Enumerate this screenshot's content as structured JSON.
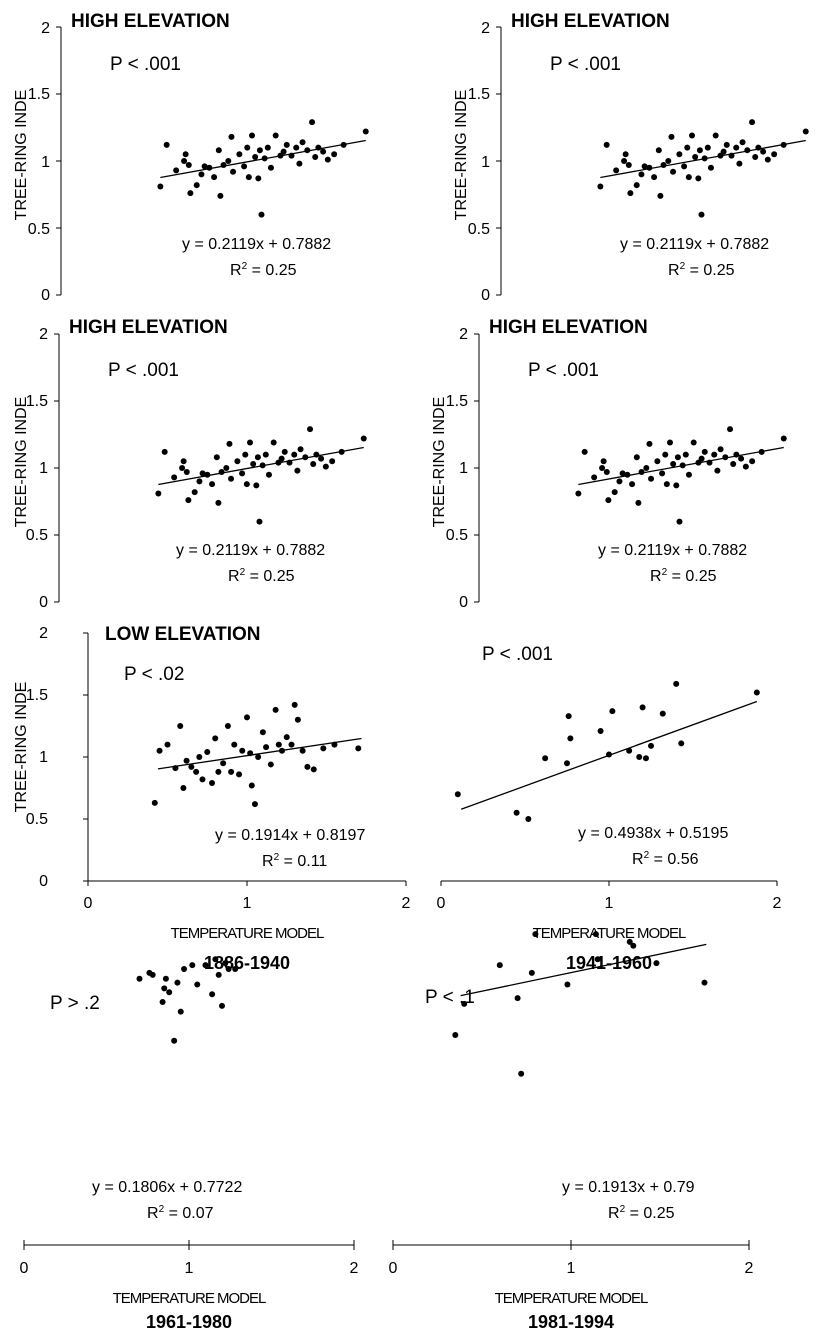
{
  "figure": {
    "y_axis_label": "TREE-RING INDE",
    "x_axis_label": "TEMPERATURE MODEL",
    "y_ticks": [
      "0",
      "0.5",
      "1",
      "1.5",
      "2"
    ],
    "x_ticks": [
      "0",
      "1",
      "2"
    ]
  },
  "chart_data": [
    {
      "type": "scatter",
      "panel": "row1-left",
      "title": "HIGH ELEVATION",
      "p_value": "P < .001",
      "equation": "y = 0.2119x + 0.7882",
      "r2_label": "R",
      "r2_sup": "2",
      "r2_value": " = 0.25",
      "ylim": [
        0,
        2
      ],
      "xlim": [
        0,
        2
      ],
      "trend": {
        "slope": 0.2119,
        "intercept": 0.7882,
        "x_range": [
          0.42,
          1.72
        ]
      },
      "points": [
        [
          0.42,
          0.81
        ],
        [
          0.46,
          1.12
        ],
        [
          0.52,
          0.93
        ],
        [
          0.57,
          1.0
        ],
        [
          0.58,
          1.05
        ],
        [
          0.6,
          0.97
        ],
        [
          0.61,
          0.76
        ],
        [
          0.65,
          0.82
        ],
        [
          0.68,
          0.9
        ],
        [
          0.7,
          0.96
        ],
        [
          0.73,
          0.95
        ],
        [
          0.76,
          0.88
        ],
        [
          0.79,
          1.08
        ],
        [
          0.8,
          0.74
        ],
        [
          0.82,
          0.97
        ],
        [
          0.85,
          1.0
        ],
        [
          0.87,
          1.18
        ],
        [
          0.88,
          0.92
        ],
        [
          0.92,
          1.05
        ],
        [
          0.95,
          0.96
        ],
        [
          0.97,
          1.1
        ],
        [
          0.98,
          0.88
        ],
        [
          1.0,
          1.19
        ],
        [
          1.02,
          1.03
        ],
        [
          1.04,
          0.87
        ],
        [
          1.05,
          1.08
        ],
        [
          1.06,
          0.6
        ],
        [
          1.08,
          1.02
        ],
        [
          1.1,
          1.1
        ],
        [
          1.12,
          0.95
        ],
        [
          1.15,
          1.19
        ],
        [
          1.18,
          1.04
        ],
        [
          1.2,
          1.07
        ],
        [
          1.22,
          1.12
        ],
        [
          1.25,
          1.04
        ],
        [
          1.28,
          1.1
        ],
        [
          1.3,
          0.98
        ],
        [
          1.32,
          1.14
        ],
        [
          1.35,
          1.08
        ],
        [
          1.38,
          1.29
        ],
        [
          1.4,
          1.03
        ],
        [
          1.42,
          1.1
        ],
        [
          1.45,
          1.07
        ],
        [
          1.48,
          1.01
        ],
        [
          1.52,
          1.05
        ],
        [
          1.58,
          1.12
        ],
        [
          1.72,
          1.22
        ]
      ]
    },
    {
      "type": "scatter",
      "panel": "row1-right",
      "title": "HIGH ELEVATION",
      "p_value": "P < .001",
      "equation": "y = 0.2119x + 0.7882",
      "r2_label": "R",
      "r2_sup": "2",
      "r2_value": " = 0.25",
      "ylim": [
        0,
        2
      ],
      "xlim": [
        0,
        2
      ],
      "trend": {
        "slope": 0.2119,
        "intercept": 0.7882,
        "x_range": [
          0.42,
          1.72
        ]
      },
      "points": [
        [
          0.42,
          0.81
        ],
        [
          0.46,
          1.12
        ],
        [
          0.52,
          0.93
        ],
        [
          0.57,
          1.0
        ],
        [
          0.58,
          1.05
        ],
        [
          0.6,
          0.97
        ],
        [
          0.61,
          0.76
        ],
        [
          0.65,
          0.82
        ],
        [
          0.68,
          0.9
        ],
        [
          0.7,
          0.96
        ],
        [
          0.73,
          0.95
        ],
        [
          0.76,
          0.88
        ],
        [
          0.79,
          1.08
        ],
        [
          0.8,
          0.74
        ],
        [
          0.82,
          0.97
        ],
        [
          0.85,
          1.0
        ],
        [
          0.87,
          1.18
        ],
        [
          0.88,
          0.92
        ],
        [
          0.92,
          1.05
        ],
        [
          0.95,
          0.96
        ],
        [
          0.97,
          1.1
        ],
        [
          0.98,
          0.88
        ],
        [
          1.0,
          1.19
        ],
        [
          1.02,
          1.03
        ],
        [
          1.04,
          0.87
        ],
        [
          1.05,
          1.08
        ],
        [
          1.06,
          0.6
        ],
        [
          1.08,
          1.02
        ],
        [
          1.1,
          1.1
        ],
        [
          1.12,
          0.95
        ],
        [
          1.15,
          1.19
        ],
        [
          1.18,
          1.04
        ],
        [
          1.2,
          1.07
        ],
        [
          1.22,
          1.12
        ],
        [
          1.25,
          1.04
        ],
        [
          1.28,
          1.1
        ],
        [
          1.3,
          0.98
        ],
        [
          1.32,
          1.14
        ],
        [
          1.35,
          1.08
        ],
        [
          1.38,
          1.29
        ],
        [
          1.4,
          1.03
        ],
        [
          1.42,
          1.1
        ],
        [
          1.45,
          1.07
        ],
        [
          1.48,
          1.01
        ],
        [
          1.52,
          1.05
        ],
        [
          1.58,
          1.12
        ],
        [
          1.72,
          1.22
        ]
      ]
    },
    {
      "type": "scatter",
      "panel": "row2-left",
      "title": "HIGH ELEVATION",
      "p_value": "P < .001",
      "equation": "y = 0.2119x + 0.7882",
      "r2_label": "R",
      "r2_sup": "2",
      "r2_value": " = 0.25",
      "ylim": [
        0,
        2
      ],
      "xlim": [
        0,
        2
      ],
      "trend": {
        "slope": 0.2119,
        "intercept": 0.7882,
        "x_range": [
          0.42,
          1.72
        ]
      },
      "points": [
        [
          0.42,
          0.81
        ],
        [
          0.46,
          1.12
        ],
        [
          0.52,
          0.93
        ],
        [
          0.57,
          1.0
        ],
        [
          0.58,
          1.05
        ],
        [
          0.6,
          0.97
        ],
        [
          0.61,
          0.76
        ],
        [
          0.65,
          0.82
        ],
        [
          0.68,
          0.9
        ],
        [
          0.7,
          0.96
        ],
        [
          0.73,
          0.95
        ],
        [
          0.76,
          0.88
        ],
        [
          0.79,
          1.08
        ],
        [
          0.8,
          0.74
        ],
        [
          0.82,
          0.97
        ],
        [
          0.85,
          1.0
        ],
        [
          0.87,
          1.18
        ],
        [
          0.88,
          0.92
        ],
        [
          0.92,
          1.05
        ],
        [
          0.95,
          0.96
        ],
        [
          0.97,
          1.1
        ],
        [
          0.98,
          0.88
        ],
        [
          1.0,
          1.19
        ],
        [
          1.02,
          1.03
        ],
        [
          1.04,
          0.87
        ],
        [
          1.05,
          1.08
        ],
        [
          1.06,
          0.6
        ],
        [
          1.08,
          1.02
        ],
        [
          1.1,
          1.1
        ],
        [
          1.12,
          0.95
        ],
        [
          1.15,
          1.19
        ],
        [
          1.18,
          1.04
        ],
        [
          1.2,
          1.07
        ],
        [
          1.22,
          1.12
        ],
        [
          1.25,
          1.04
        ],
        [
          1.28,
          1.1
        ],
        [
          1.3,
          0.98
        ],
        [
          1.32,
          1.14
        ],
        [
          1.35,
          1.08
        ],
        [
          1.38,
          1.29
        ],
        [
          1.4,
          1.03
        ],
        [
          1.42,
          1.1
        ],
        [
          1.45,
          1.07
        ],
        [
          1.48,
          1.01
        ],
        [
          1.52,
          1.05
        ],
        [
          1.58,
          1.12
        ],
        [
          1.72,
          1.22
        ]
      ]
    },
    {
      "type": "scatter",
      "panel": "row2-right",
      "title": "HIGH ELEVATION",
      "p_value": "P < .001",
      "equation": "y = 0.2119x + 0.7882",
      "r2_label": "R",
      "r2_sup": "2",
      "r2_value": " = 0.25",
      "ylim": [
        0,
        2
      ],
      "xlim": [
        0,
        2
      ],
      "trend": {
        "slope": 0.2119,
        "intercept": 0.7882,
        "x_range": [
          0.42,
          1.72
        ]
      },
      "points": [
        [
          0.42,
          0.81
        ],
        [
          0.46,
          1.12
        ],
        [
          0.52,
          0.93
        ],
        [
          0.57,
          1.0
        ],
        [
          0.58,
          1.05
        ],
        [
          0.6,
          0.97
        ],
        [
          0.61,
          0.76
        ],
        [
          0.65,
          0.82
        ],
        [
          0.68,
          0.9
        ],
        [
          0.7,
          0.96
        ],
        [
          0.73,
          0.95
        ],
        [
          0.76,
          0.88
        ],
        [
          0.79,
          1.08
        ],
        [
          0.8,
          0.74
        ],
        [
          0.82,
          0.97
        ],
        [
          0.85,
          1.0
        ],
        [
          0.87,
          1.18
        ],
        [
          0.88,
          0.92
        ],
        [
          0.92,
          1.05
        ],
        [
          0.95,
          0.96
        ],
        [
          0.97,
          1.1
        ],
        [
          0.98,
          0.88
        ],
        [
          1.0,
          1.19
        ],
        [
          1.02,
          1.03
        ],
        [
          1.04,
          0.87
        ],
        [
          1.05,
          1.08
        ],
        [
          1.06,
          0.6
        ],
        [
          1.08,
          1.02
        ],
        [
          1.1,
          1.1
        ],
        [
          1.12,
          0.95
        ],
        [
          1.15,
          1.19
        ],
        [
          1.18,
          1.04
        ],
        [
          1.2,
          1.07
        ],
        [
          1.22,
          1.12
        ],
        [
          1.25,
          1.04
        ],
        [
          1.28,
          1.1
        ],
        [
          1.3,
          0.98
        ],
        [
          1.32,
          1.14
        ],
        [
          1.35,
          1.08
        ],
        [
          1.38,
          1.29
        ],
        [
          1.4,
          1.03
        ],
        [
          1.42,
          1.1
        ],
        [
          1.45,
          1.07
        ],
        [
          1.48,
          1.01
        ],
        [
          1.52,
          1.05
        ],
        [
          1.58,
          1.12
        ],
        [
          1.72,
          1.22
        ]
      ]
    },
    {
      "type": "scatter",
      "panel": "row3-left",
      "title": "LOW ELEVATION",
      "p_value": "P < .02",
      "equation": "y = 0.1914x + 0.8197",
      "r2_label": "R",
      "r2_sup": "2",
      "r2_value": " = 0.11",
      "period": "1886-1940",
      "ylim": [
        0,
        2
      ],
      "xlim": [
        0,
        2
      ],
      "trend": {
        "slope": 0.1914,
        "intercept": 0.8197,
        "x_range": [
          0.44,
          1.72
        ]
      },
      "points": [
        [
          0.42,
          0.63
        ],
        [
          0.45,
          1.05
        ],
        [
          0.5,
          1.1
        ],
        [
          0.55,
          0.91
        ],
        [
          0.58,
          1.25
        ],
        [
          0.6,
          0.75
        ],
        [
          0.62,
          0.97
        ],
        [
          0.65,
          0.92
        ],
        [
          0.68,
          0.88
        ],
        [
          0.7,
          1.0
        ],
        [
          0.72,
          0.82
        ],
        [
          0.75,
          1.04
        ],
        [
          0.78,
          0.79
        ],
        [
          0.8,
          1.15
        ],
        [
          0.82,
          0.88
        ],
        [
          0.85,
          0.95
        ],
        [
          0.88,
          1.25
        ],
        [
          0.9,
          0.88
        ],
        [
          0.92,
          1.1
        ],
        [
          0.95,
          0.86
        ],
        [
          0.97,
          1.05
        ],
        [
          1.0,
          1.32
        ],
        [
          1.02,
          1.03
        ],
        [
          1.03,
          0.77
        ],
        [
          1.05,
          0.62
        ],
        [
          1.07,
          1.0
        ],
        [
          1.1,
          1.2
        ],
        [
          1.12,
          1.08
        ],
        [
          1.15,
          0.94
        ],
        [
          1.18,
          1.38
        ],
        [
          1.2,
          1.1
        ],
        [
          1.22,
          1.05
        ],
        [
          1.25,
          1.16
        ],
        [
          1.28,
          1.1
        ],
        [
          1.3,
          1.42
        ],
        [
          1.32,
          1.3
        ],
        [
          1.35,
          1.05
        ],
        [
          1.38,
          0.92
        ],
        [
          1.42,
          0.9
        ],
        [
          1.48,
          1.07
        ],
        [
          1.55,
          1.1
        ],
        [
          1.7,
          1.07
        ]
      ]
    },
    {
      "type": "scatter",
      "panel": "row3-right",
      "p_value": "P < .001",
      "equation": "y = 0.4938x + 0.5195",
      "r2_label": "R",
      "r2_sup": "2",
      "r2_value": " = 0.56",
      "period": "1941-1960",
      "ylim": [
        0,
        2
      ],
      "xlim": [
        0,
        2
      ],
      "trend": {
        "slope": 0.4938,
        "intercept": 0.5195,
        "x_range": [
          0.12,
          1.88
        ]
      },
      "points": [
        [
          0.1,
          0.7
        ],
        [
          0.45,
          0.55
        ],
        [
          0.52,
          0.5
        ],
        [
          0.62,
          0.99
        ],
        [
          0.75,
          0.95
        ],
        [
          0.76,
          1.33
        ],
        [
          0.77,
          1.15
        ],
        [
          0.95,
          1.21
        ],
        [
          1.0,
          1.02
        ],
        [
          1.02,
          1.37
        ],
        [
          1.12,
          1.05
        ],
        [
          1.18,
          1.0
        ],
        [
          1.2,
          1.4
        ],
        [
          1.22,
          0.99
        ],
        [
          1.25,
          1.09
        ],
        [
          1.32,
          1.35
        ],
        [
          1.4,
          1.59
        ],
        [
          1.43,
          1.11
        ],
        [
          1.88,
          1.52
        ]
      ]
    },
    {
      "type": "scatter",
      "panel": "row4-left",
      "p_value": "P > .2",
      "equation": "y = 0.1806x + 0.7722",
      "r2_label": "R",
      "r2_sup": "2",
      "r2_value": " = 0.07",
      "period": "1961-1980",
      "ylim": [
        0,
        2
      ],
      "xlim": [
        0,
        2
      ],
      "points": [
        [
          0.7,
          0.95
        ],
        [
          0.76,
          0.98
        ],
        [
          0.78,
          0.97
        ],
        [
          0.84,
          0.83
        ],
        [
          0.85,
          0.9
        ],
        [
          0.86,
          0.95
        ],
        [
          0.88,
          0.88
        ],
        [
          0.91,
          0.63
        ],
        [
          0.93,
          0.93
        ],
        [
          0.95,
          0.78
        ],
        [
          0.97,
          1.0
        ],
        [
          1.02,
          1.02
        ],
        [
          1.05,
          0.92
        ],
        [
          1.1,
          1.02
        ],
        [
          1.14,
          0.87
        ],
        [
          1.16,
          1.05
        ],
        [
          1.18,
          0.97
        ],
        [
          1.2,
          0.81
        ],
        [
          1.22,
          1.03
        ],
        [
          1.24,
          1.0
        ],
        [
          1.28,
          1.0
        ]
      ]
    },
    {
      "type": "scatter",
      "panel": "row4-right",
      "p_value": "P < .1",
      "equation": "y = 0.1913x + 0.79",
      "r2_label": "R",
      "r2_sup": "2",
      "r2_value": " = 0.25",
      "period": "1981-1994",
      "ylim": [
        0,
        2
      ],
      "xlim": [
        0,
        2
      ],
      "trend": {
        "slope": 0.1913,
        "intercept": 0.79,
        "x_range": [
          0.38,
          1.76
        ]
      },
      "points": [
        [
          0.35,
          0.66
        ],
        [
          0.4,
          0.82
        ],
        [
          0.6,
          1.02
        ],
        [
          0.7,
          0.85
        ],
        [
          0.72,
          0.46
        ],
        [
          0.78,
          0.98
        ],
        [
          0.8,
          1.18
        ],
        [
          0.98,
          0.92
        ],
        [
          1.14,
          1.18
        ],
        [
          1.15,
          1.05
        ],
        [
          1.33,
          1.14
        ],
        [
          1.35,
          1.12
        ],
        [
          1.48,
          1.03
        ],
        [
          1.75,
          0.93
        ]
      ]
    }
  ]
}
